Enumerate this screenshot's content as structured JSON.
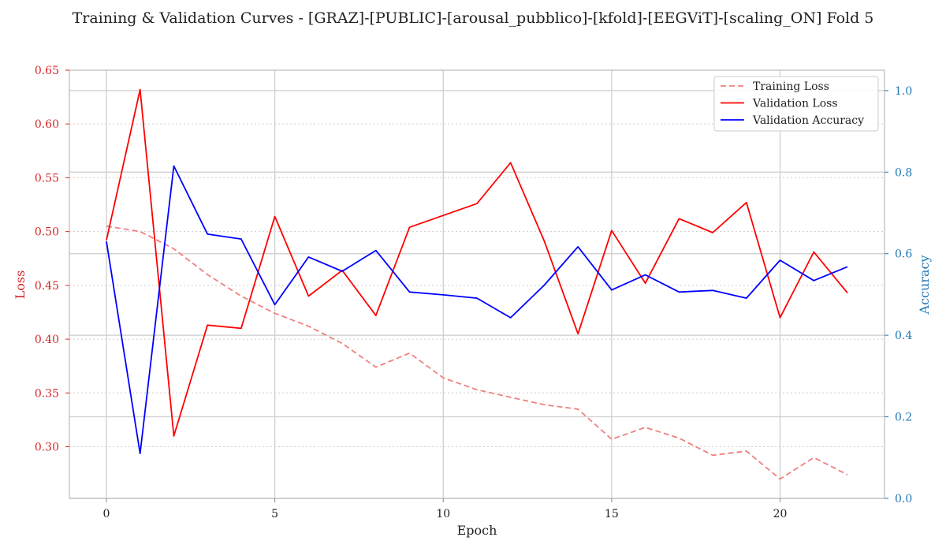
{
  "chart_data": {
    "type": "line",
    "title": "Training & Validation Curves - [GRAZ]-[PUBLIC]-[arousal_pubblico]-[kfold]-[EEGViT]-[scaling_ON] Fold 5",
    "xlabel": "Epoch",
    "ylabel_left": "Loss",
    "ylabel_right": "Accuracy",
    "xlim": [
      -1.1,
      23.1
    ],
    "ylim_left": [
      0.252,
      0.65
    ],
    "ylim_right": [
      0.0,
      1.05
    ],
    "xticks": [
      0,
      5,
      10,
      15,
      20
    ],
    "yticks_left": [
      0.3,
      0.35,
      0.4,
      0.45,
      0.5,
      0.55,
      0.6,
      0.65
    ],
    "yticks_right": [
      0.0,
      0.2,
      0.4,
      0.6,
      0.8,
      1.0
    ],
    "grid": true,
    "legend_position": "top-right",
    "x": [
      0,
      1,
      2,
      3,
      4,
      5,
      6,
      7,
      8,
      9,
      10,
      11,
      12,
      13,
      14,
      15,
      16,
      17,
      18,
      19,
      20,
      21,
      22
    ],
    "series": [
      {
        "name": "Training Loss",
        "axis": "left",
        "color": "#f08080",
        "dashed": true,
        "values": [
          0.505,
          0.5,
          0.484,
          0.46,
          0.44,
          0.424,
          0.412,
          0.396,
          0.374,
          0.387,
          0.364,
          0.353,
          0.346,
          0.339,
          0.335,
          0.307,
          0.318,
          0.308,
          0.292,
          0.296,
          0.27,
          0.29,
          0.274
        ]
      },
      {
        "name": "Validation Loss",
        "axis": "left",
        "color": "#ff0000",
        "dashed": false,
        "values": [
          0.492,
          0.632,
          0.31,
          0.413,
          0.41,
          0.514,
          0.44,
          0.464,
          0.422,
          0.504,
          0.515,
          0.526,
          0.564,
          0.491,
          0.405,
          0.501,
          0.452,
          0.512,
          0.499,
          0.527,
          0.42,
          0.481,
          0.443
        ]
      },
      {
        "name": "Validation Accuracy",
        "axis": "right",
        "color": "#0000ff",
        "dashed": false,
        "values": [
          0.63,
          0.11,
          0.815,
          0.648,
          0.636,
          0.475,
          0.592,
          0.557,
          0.608,
          0.506,
          0.499,
          0.491,
          0.443,
          0.523,
          0.617,
          0.511,
          0.548,
          0.506,
          0.51,
          0.491,
          0.584,
          0.534,
          0.568
        ]
      }
    ],
    "colors": {
      "left_axis": "#d62728",
      "right_axis": "#1f77b4",
      "grid_major": "#cccccc",
      "grid_minor": "#cccccc",
      "spine": "#bbbbbb",
      "text": "#222222"
    }
  }
}
